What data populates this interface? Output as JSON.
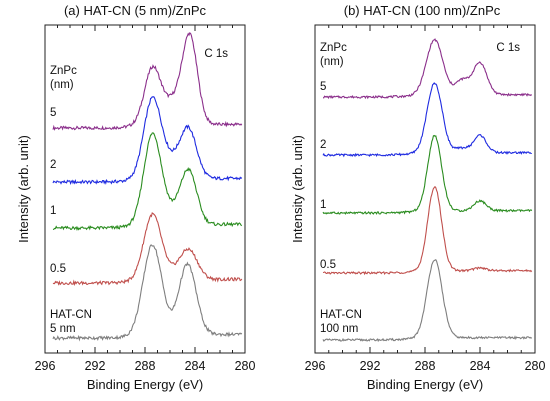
{
  "colors": {
    "5": "#8b2f8b",
    "2": "#1f2be0",
    "1": "#2a8c1f",
    "0.5": "#c0504d",
    "HAT-CN": "#7f7f7f"
  },
  "chart_data": [
    {
      "type": "line",
      "title": "(a) HAT-CN (5 nm)/ZnPc",
      "element_label": "C 1s",
      "xlabel": "Binding Energy (eV)",
      "ylabel": "Intensity (arb. unit)",
      "xlim": [
        296,
        280
      ],
      "x_reversed": true,
      "xticks": [
        "296",
        "292",
        "288",
        "284",
        "280"
      ],
      "legend_title_lines": [
        "ZnPc",
        "(nm)"
      ],
      "series": [
        {
          "name": "5",
          "label_lines": [
            "5"
          ],
          "color_key": "5",
          "peaks": [
            {
              "x": 287.4,
              "amp": 0.62,
              "w": 0.65
            },
            {
              "x": 284.4,
              "amp": 0.94,
              "w": 0.6
            },
            {
              "x": 285.7,
              "amp": 0.25,
              "w": 0.8
            }
          ]
        },
        {
          "name": "2",
          "label_lines": [
            "2"
          ],
          "color_key": "2",
          "peaks": [
            {
              "x": 287.4,
              "amp": 0.88,
              "w": 0.7
            },
            {
              "x": 284.5,
              "amp": 0.52,
              "w": 0.65
            },
            {
              "x": 285.8,
              "amp": 0.18,
              "w": 0.8
            }
          ]
        },
        {
          "name": "1",
          "label_lines": [
            "1"
          ],
          "color_key": "1",
          "peaks": [
            {
              "x": 287.4,
              "amp": 1.0,
              "w": 0.7
            },
            {
              "x": 284.5,
              "amp": 0.58,
              "w": 0.65
            },
            {
              "x": 285.8,
              "amp": 0.12,
              "w": 0.8
            }
          ]
        },
        {
          "name": "0.5",
          "label_lines": [
            "0.5"
          ],
          "color_key": "0.5",
          "peaks": [
            {
              "x": 287.4,
              "amp": 0.72,
              "w": 0.7
            },
            {
              "x": 284.5,
              "amp": 0.32,
              "w": 0.7
            },
            {
              "x": 285.8,
              "amp": 0.06,
              "w": 0.8
            }
          ]
        },
        {
          "name": "HAT-CN",
          "label_lines": [
            "HAT-CN",
            "5 nm"
          ],
          "color_key": "HAT-CN",
          "peaks": [
            {
              "x": 287.4,
              "amp": 1.0,
              "w": 0.75
            },
            {
              "x": 284.6,
              "amp": 0.78,
              "w": 0.7
            }
          ]
        }
      ]
    },
    {
      "type": "line",
      "title": "(b) HAT-CN (100 nm)/ZnPc",
      "element_label": "C 1s",
      "xlabel": "Binding Energy (eV)",
      "ylabel": "Intensity (arb. unit)",
      "xlim": [
        296,
        280
      ],
      "x_reversed": true,
      "xticks": [
        "296",
        "292",
        "288",
        "284",
        "280"
      ],
      "legend_title_lines": [
        "ZnPc",
        "(nm)"
      ],
      "series": [
        {
          "name": "5",
          "label_lines": [
            "5"
          ],
          "color_key": "5",
          "peaks": [
            {
              "x": 287.3,
              "amp": 0.95,
              "w": 0.6
            },
            {
              "x": 284.0,
              "amp": 0.55,
              "w": 0.5
            },
            {
              "x": 285.3,
              "amp": 0.25,
              "w": 0.5
            }
          ]
        },
        {
          "name": "2",
          "label_lines": [
            "2"
          ],
          "color_key": "2",
          "peaks": [
            {
              "x": 287.3,
              "amp": 1.2,
              "w": 0.55
            },
            {
              "x": 284.0,
              "amp": 0.3,
              "w": 0.45
            },
            {
              "x": 285.3,
              "amp": 0.08,
              "w": 0.5
            }
          ]
        },
        {
          "name": "1",
          "label_lines": [
            "1"
          ],
          "color_key": "1",
          "peaks": [
            {
              "x": 287.3,
              "amp": 1.3,
              "w": 0.5
            },
            {
              "x": 284.0,
              "amp": 0.17,
              "w": 0.45
            }
          ]
        },
        {
          "name": "0.5",
          "label_lines": [
            "0.5"
          ],
          "color_key": "0.5",
          "peaks": [
            {
              "x": 287.3,
              "amp": 1.45,
              "w": 0.5
            },
            {
              "x": 284.0,
              "amp": 0.05,
              "w": 0.45
            }
          ]
        },
        {
          "name": "HAT-CN",
          "label_lines": [
            "HAT-CN",
            "100 nm"
          ],
          "color_key": "HAT-CN",
          "peaks": [
            {
              "x": 287.3,
              "amp": 1.35,
              "w": 0.55
            }
          ]
        }
      ]
    }
  ]
}
